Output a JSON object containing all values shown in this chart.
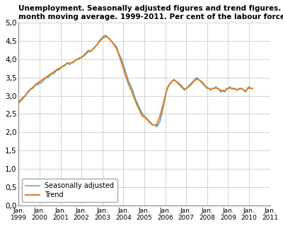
{
  "title_line1": "Unemployment. Seasonally adjusted figures and trend figures. Three-",
  "title_line2": "month moving average. 1999-2011. Per cent of the labour force",
  "ylabel_values": [
    "0,0",
    "0,5",
    "1,0",
    "1,5",
    "2,0",
    "2,5",
    "3,0",
    "3,5",
    "4,0",
    "4,5",
    "5,0"
  ],
  "yticks": [
    0.0,
    0.5,
    1.0,
    1.5,
    2.0,
    2.5,
    3.0,
    3.5,
    4.0,
    4.5,
    5.0
  ],
  "ylim": [
    0.0,
    5.0
  ],
  "xtick_years": [
    1999,
    2000,
    2001,
    2002,
    2003,
    2004,
    2005,
    2006,
    2007,
    2008,
    2009,
    2010,
    2011
  ],
  "color_sa": "#4ea8d2",
  "color_trend": "#e08020",
  "legend_sa": "Seasonally adjusted",
  "legend_trend": "Trend",
  "sa_data": [
    2.8,
    2.85,
    2.9,
    2.95,
    3.0,
    3.1,
    3.15,
    3.2,
    3.2,
    3.25,
    3.3,
    3.3,
    3.35,
    3.35,
    3.4,
    3.45,
    3.5,
    3.5,
    3.55,
    3.6,
    3.6,
    3.65,
    3.7,
    3.7,
    3.75,
    3.8,
    3.8,
    3.85,
    3.9,
    3.85,
    3.9,
    3.9,
    3.95,
    4.0,
    4.0,
    4.05,
    4.05,
    4.1,
    4.15,
    4.2,
    4.25,
    4.2,
    4.25,
    4.3,
    4.35,
    4.4,
    4.5,
    4.55,
    4.6,
    4.65,
    4.65,
    4.6,
    4.55,
    4.5,
    4.45,
    4.4,
    4.35,
    4.2,
    4.1,
    4.0,
    3.85,
    3.7,
    3.55,
    3.4,
    3.3,
    3.2,
    3.05,
    2.9,
    2.8,
    2.7,
    2.6,
    2.5,
    2.45,
    2.4,
    2.35,
    2.3,
    2.25,
    2.2,
    2.2,
    2.15,
    2.2,
    2.3,
    2.5,
    2.7,
    3.0,
    3.2,
    3.3,
    3.35,
    3.4,
    3.45,
    3.4,
    3.35,
    3.3,
    3.25,
    3.2,
    3.15,
    3.2,
    3.25,
    3.3,
    3.35,
    3.4,
    3.45,
    3.5,
    3.45,
    3.4,
    3.35,
    3.3,
    3.25,
    3.2,
    3.2,
    3.15,
    3.2,
    3.2,
    3.25,
    3.2,
    3.15,
    3.1,
    3.15,
    3.1,
    3.2,
    3.2,
    3.25,
    3.2,
    3.2,
    3.2,
    3.15,
    3.2,
    3.2,
    3.2,
    3.15,
    3.1,
    3.2,
    3.25,
    3.2,
    3.2
  ],
  "trend_data": [
    2.8,
    2.88,
    2.93,
    2.97,
    3.02,
    3.08,
    3.13,
    3.18,
    3.22,
    3.27,
    3.32,
    3.35,
    3.38,
    3.42,
    3.45,
    3.48,
    3.52,
    3.55,
    3.58,
    3.62,
    3.65,
    3.68,
    3.72,
    3.74,
    3.77,
    3.8,
    3.83,
    3.86,
    3.9,
    3.88,
    3.9,
    3.92,
    3.95,
    3.98,
    4.0,
    4.02,
    4.05,
    4.08,
    4.12,
    4.17,
    4.22,
    4.22,
    4.25,
    4.3,
    4.35,
    4.4,
    4.47,
    4.52,
    4.57,
    4.6,
    4.62,
    4.6,
    4.56,
    4.5,
    4.44,
    4.37,
    4.3,
    4.18,
    4.05,
    3.9,
    3.75,
    3.6,
    3.45,
    3.32,
    3.2,
    3.1,
    2.97,
    2.85,
    2.73,
    2.63,
    2.53,
    2.44,
    2.42,
    2.38,
    2.33,
    2.28,
    2.23,
    2.2,
    2.2,
    2.2,
    2.32,
    2.45,
    2.62,
    2.8,
    3.0,
    3.17,
    3.28,
    3.35,
    3.4,
    3.43,
    3.4,
    3.37,
    3.33,
    3.28,
    3.23,
    3.18,
    3.2,
    3.23,
    3.27,
    3.32,
    3.38,
    3.42,
    3.46,
    3.44,
    3.42,
    3.38,
    3.32,
    3.27,
    3.22,
    3.2,
    3.17,
    3.2,
    3.2,
    3.22,
    3.2,
    3.17,
    3.14,
    3.15,
    3.12,
    3.17,
    3.2,
    3.22,
    3.2,
    3.19,
    3.19,
    3.16,
    3.18,
    3.19,
    3.19,
    3.16,
    3.12,
    3.18,
    3.22,
    3.2,
    3.2
  ]
}
